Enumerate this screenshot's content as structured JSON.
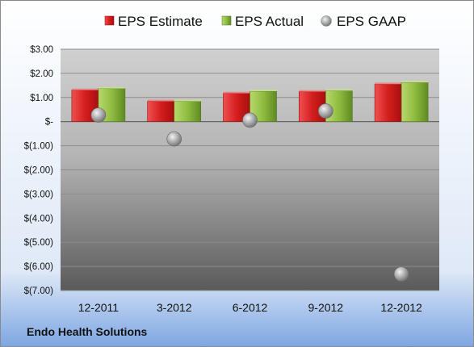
{
  "chart_data": {
    "type": "bar",
    "company": "Endo Health Solutions",
    "categories": [
      "12-2011",
      "3-2012",
      "6-2012",
      "9-2012",
      "12-2012"
    ],
    "series": [
      {
        "name": "EPS Estimate",
        "kind": "bar",
        "color": "#d42020",
        "values": [
          1.3,
          0.84,
          1.17,
          1.24,
          1.55
        ]
      },
      {
        "name": "EPS Actual",
        "kind": "bar",
        "color": "#8fbc3f",
        "values": [
          1.37,
          0.84,
          1.26,
          1.28,
          1.62
        ]
      },
      {
        "name": "EPS GAAP",
        "kind": "marker",
        "color": "#a8a8a8",
        "values": [
          0.27,
          -0.72,
          0.06,
          0.44,
          -6.32
        ]
      }
    ],
    "ylim": [
      -7.0,
      3.0
    ],
    "yticks": [
      3,
      2,
      1,
      0,
      -1,
      -2,
      -3,
      -4,
      -5,
      -6,
      -7
    ],
    "ytick_labels": [
      "$3.00",
      "$2.00",
      "$1.00",
      "$-",
      "$(1.00)",
      "$(2.00)",
      "$(3.00)",
      "$(4.00)",
      "$(5.00)",
      "$(6.00)",
      "$(7.00)"
    ],
    "grid": true,
    "legend_position": "top"
  }
}
